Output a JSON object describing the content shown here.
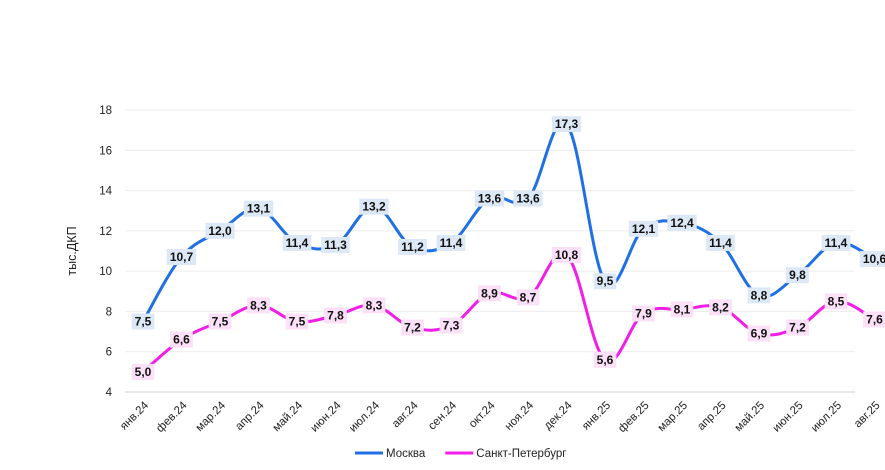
{
  "chart_data": {
    "type": "line",
    "title": "",
    "xlabel": "",
    "ylabel": "тыс.ДКП",
    "ylim": [
      4,
      18
    ],
    "yticks": [
      4,
      6,
      8,
      10,
      12,
      14,
      16,
      18
    ],
    "grid": "horizontal",
    "legend_position": "bottom",
    "categories": [
      "янв.24",
      "фев.24",
      "мар.24",
      "апр.24",
      "май.24",
      "июн.24",
      "июл.24",
      "авг.24",
      "сен.24",
      "окт.24",
      "ноя.24",
      "дек.24",
      "янв.25",
      "фев.25",
      "мар.25",
      "апр.25",
      "май.25",
      "июн.25",
      "июл.25",
      "авг.25"
    ],
    "series": [
      {
        "name": "Москва",
        "color": "#1f6fe5",
        "label_bg": "#dde8f6",
        "values": [
          7.5,
          10.7,
          12.0,
          13.1,
          11.4,
          11.3,
          13.2,
          11.2,
          11.4,
          13.6,
          13.6,
          17.3,
          9.5,
          12.1,
          12.4,
          11.4,
          8.8,
          9.8,
          11.4,
          10.6
        ],
        "labels": [
          "7,5",
          "10,7",
          "12,0",
          "13,1",
          "11,4",
          "11,3",
          "13,2",
          "11,2",
          "11,4",
          "13,6",
          "13,6",
          "17,3",
          "9,5",
          "12,1",
          "12,4",
          "11,4",
          "8,8",
          "9,8",
          "11,4",
          "10,6"
        ]
      },
      {
        "name": "Санкт-Петербург",
        "color": "#f21ee8",
        "label_bg": "#fbe0f7",
        "values": [
          5.0,
          6.6,
          7.5,
          8.3,
          7.5,
          7.8,
          8.3,
          7.2,
          7.3,
          8.9,
          8.7,
          10.8,
          5.6,
          7.9,
          8.1,
          8.2,
          6.9,
          7.2,
          8.5,
          7.6
        ],
        "labels": [
          "5,0",
          "6,6",
          "7,5",
          "8,3",
          "7,5",
          "7,8",
          "8,3",
          "7,2",
          "7,3",
          "8,9",
          "8,7",
          "10,8",
          "5,6",
          "7,9",
          "8,1",
          "8,2",
          "6,9",
          "7,2",
          "8,5",
          "7,6"
        ]
      }
    ]
  }
}
